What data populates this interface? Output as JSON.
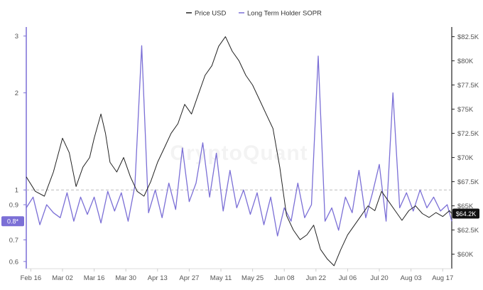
{
  "chart_data": {
    "type": "line",
    "watermark": "CryptoQuant",
    "legend": {
      "placement": "top-center",
      "items": [
        {
          "label": "Price USD",
          "color": "#222222"
        },
        {
          "label": "Long Term Holder SOPR",
          "color": "#7b6fd6"
        }
      ]
    },
    "x": {
      "tick_labels": [
        "Feb 16",
        "Mar 02",
        "Mar 16",
        "Mar 30",
        "Apr 13",
        "Apr 27",
        "May 11",
        "May 25",
        "Jun 08",
        "Jun 22",
        "Jul 06",
        "Jul 20",
        "Aug 03",
        "Aug 17"
      ],
      "start": "2024-02-14",
      "end": "2024-08-20"
    },
    "y_left": {
      "label": "",
      "scale": "log",
      "range": [
        0.57,
        3.2
      ],
      "ticks": [
        3,
        2,
        1,
        0.9,
        0.7,
        0.6
      ],
      "reference_line": 1,
      "current_value_label": "0.8*"
    },
    "y_right": {
      "label": "",
      "range": [
        58500,
        83500
      ],
      "ticks": [
        {
          "value": 82500,
          "label": "$82.5K"
        },
        {
          "value": 80000,
          "label": "$80K"
        },
        {
          "value": 77500,
          "label": "$77.5K"
        },
        {
          "value": 75000,
          "label": "$75K"
        },
        {
          "value": 72500,
          "label": "$72.5K"
        },
        {
          "value": 70000,
          "label": "$70K"
        },
        {
          "value": 67500,
          "label": "$67.5K"
        },
        {
          "value": 65000,
          "label": "$65K"
        },
        {
          "value": 62500,
          "label": "$62.5K"
        },
        {
          "value": 60000,
          "label": "$60K"
        }
      ],
      "current_value_label": "$64.2K"
    },
    "series": [
      {
        "name": "Price USD",
        "axis": "right",
        "color": "#222222",
        "points": [
          [
            "2024-02-14",
            68000
          ],
          [
            "2024-02-18",
            66500
          ],
          [
            "2024-02-22",
            66000
          ],
          [
            "2024-02-26",
            68500
          ],
          [
            "2024-03-01",
            72000
          ],
          [
            "2024-03-04",
            70500
          ],
          [
            "2024-03-07",
            67000
          ],
          [
            "2024-03-10",
            69000
          ],
          [
            "2024-03-13",
            70000
          ],
          [
            "2024-03-15",
            72000
          ],
          [
            "2024-03-18",
            74500
          ],
          [
            "2024-03-20",
            72500
          ],
          [
            "2024-03-22",
            69500
          ],
          [
            "2024-03-25",
            68500
          ],
          [
            "2024-03-28",
            70000
          ],
          [
            "2024-03-31",
            68000
          ],
          [
            "2024-04-03",
            66500
          ],
          [
            "2024-04-06",
            66000
          ],
          [
            "2024-04-09",
            67500
          ],
          [
            "2024-04-12",
            69500
          ],
          [
            "2024-04-15",
            71000
          ],
          [
            "2024-04-18",
            72500
          ],
          [
            "2024-04-21",
            73500
          ],
          [
            "2024-04-24",
            75500
          ],
          [
            "2024-04-27",
            74500
          ],
          [
            "2024-04-30",
            76500
          ],
          [
            "2024-05-03",
            78500
          ],
          [
            "2024-05-06",
            79500
          ],
          [
            "2024-05-09",
            81500
          ],
          [
            "2024-05-12",
            82500
          ],
          [
            "2024-05-15",
            81000
          ],
          [
            "2024-05-18",
            80000
          ],
          [
            "2024-05-21",
            78500
          ],
          [
            "2024-05-24",
            77500
          ],
          [
            "2024-05-27",
            76000
          ],
          [
            "2024-05-30",
            74500
          ],
          [
            "2024-06-02",
            73000
          ],
          [
            "2024-06-05",
            69000
          ],
          [
            "2024-06-08",
            64000
          ],
          [
            "2024-06-11",
            62500
          ],
          [
            "2024-06-14",
            61500
          ],
          [
            "2024-06-17",
            62000
          ],
          [
            "2024-06-20",
            63000
          ],
          [
            "2024-06-23",
            60500
          ],
          [
            "2024-06-26",
            59500
          ],
          [
            "2024-06-29",
            58800
          ],
          [
            "2024-07-02",
            60500
          ],
          [
            "2024-07-05",
            62000
          ],
          [
            "2024-07-08",
            63000
          ],
          [
            "2024-07-11",
            64000
          ],
          [
            "2024-07-14",
            65000
          ],
          [
            "2024-07-17",
            64500
          ],
          [
            "2024-07-20",
            66500
          ],
          [
            "2024-07-23",
            65500
          ],
          [
            "2024-07-26",
            64500
          ],
          [
            "2024-07-29",
            63500
          ],
          [
            "2024-08-01",
            64500
          ],
          [
            "2024-08-04",
            65000
          ],
          [
            "2024-08-07",
            64200
          ],
          [
            "2024-08-10",
            63800
          ],
          [
            "2024-08-13",
            64300
          ],
          [
            "2024-08-16",
            63900
          ],
          [
            "2024-08-19",
            64500
          ],
          [
            "2024-08-20",
            64200
          ]
        ]
      },
      {
        "name": "Long Term Holder SOPR",
        "axis": "left",
        "color": "#7b6fd6",
        "points": [
          [
            "2024-02-14",
            0.88
          ],
          [
            "2024-02-17",
            0.95
          ],
          [
            "2024-02-20",
            0.78
          ],
          [
            "2024-02-23",
            0.9
          ],
          [
            "2024-02-26",
            0.85
          ],
          [
            "2024-02-29",
            0.82
          ],
          [
            "2024-03-03",
            0.98
          ],
          [
            "2024-03-06",
            0.8
          ],
          [
            "2024-03-09",
            0.95
          ],
          [
            "2024-03-12",
            0.84
          ],
          [
            "2024-03-15",
            0.95
          ],
          [
            "2024-03-18",
            0.79
          ],
          [
            "2024-03-21",
            0.99
          ],
          [
            "2024-03-24",
            0.86
          ],
          [
            "2024-03-27",
            0.98
          ],
          [
            "2024-03-30",
            0.8
          ],
          [
            "2024-04-02",
            1.03
          ],
          [
            "2024-04-05",
            2.8
          ],
          [
            "2024-04-08",
            0.85
          ],
          [
            "2024-04-11",
            1.0
          ],
          [
            "2024-04-14",
            0.82
          ],
          [
            "2024-04-17",
            1.05
          ],
          [
            "2024-04-20",
            0.87
          ],
          [
            "2024-04-23",
            1.35
          ],
          [
            "2024-04-26",
            0.92
          ],
          [
            "2024-04-29",
            1.05
          ],
          [
            "2024-05-02",
            1.4
          ],
          [
            "2024-05-05",
            0.95
          ],
          [
            "2024-05-08",
            1.3
          ],
          [
            "2024-05-11",
            0.86
          ],
          [
            "2024-05-14",
            1.15
          ],
          [
            "2024-05-17",
            0.88
          ],
          [
            "2024-05-20",
            1.0
          ],
          [
            "2024-05-23",
            0.84
          ],
          [
            "2024-05-26",
            0.98
          ],
          [
            "2024-05-29",
            0.78
          ],
          [
            "2024-06-01",
            0.95
          ],
          [
            "2024-06-04",
            0.72
          ],
          [
            "2024-06-07",
            0.88
          ],
          [
            "2024-06-10",
            0.8
          ],
          [
            "2024-06-13",
            1.05
          ],
          [
            "2024-06-16",
            0.82
          ],
          [
            "2024-06-19",
            0.9
          ],
          [
            "2024-06-22",
            2.6
          ],
          [
            "2024-06-25",
            0.8
          ],
          [
            "2024-06-28",
            0.88
          ],
          [
            "2024-07-01",
            0.75
          ],
          [
            "2024-07-04",
            0.95
          ],
          [
            "2024-07-07",
            0.85
          ],
          [
            "2024-07-10",
            1.15
          ],
          [
            "2024-07-13",
            0.82
          ],
          [
            "2024-07-16",
            0.98
          ],
          [
            "2024-07-19",
            1.2
          ],
          [
            "2024-07-22",
            0.8
          ],
          [
            "2024-07-25",
            2.0
          ],
          [
            "2024-07-28",
            0.88
          ],
          [
            "2024-07-31",
            0.98
          ],
          [
            "2024-08-03",
            0.86
          ],
          [
            "2024-08-06",
            1.0
          ],
          [
            "2024-08-09",
            0.88
          ],
          [
            "2024-08-12",
            0.95
          ],
          [
            "2024-08-15",
            0.86
          ],
          [
            "2024-08-18",
            0.9
          ],
          [
            "2024-08-20",
            0.8
          ]
        ]
      }
    ]
  }
}
